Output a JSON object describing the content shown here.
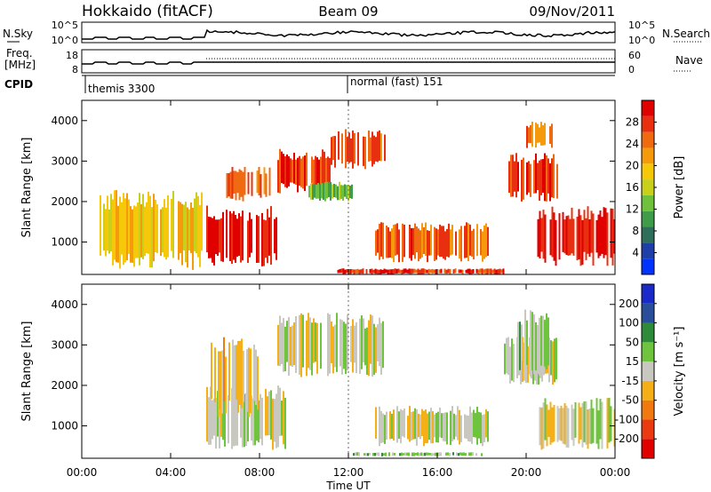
{
  "header": {
    "radar": "Hokkaido (fitACF)",
    "beam": "Beam 09",
    "date": "09/Nov/2011"
  },
  "noise_panel": {
    "left_label": "N.Sky",
    "right_label": "N.Search",
    "left_ticks": [
      "10^5",
      "10^0"
    ],
    "right_ticks": [
      "10^5",
      "10^0"
    ]
  },
  "freq_panel": {
    "left_label_1": "Freq.",
    "left_label_2": "[MHz]",
    "right_label": "Nave",
    "left_ticks": [
      "18",
      "8"
    ],
    "right_ticks": [
      "60",
      "0"
    ]
  },
  "cpid": {
    "label": "CPID",
    "segments": [
      "themis 3300",
      "normal (fast) 151"
    ]
  },
  "colors": {
    "power_scale": [
      "#0033ff",
      "#1e3fa8",
      "#2e6e5a",
      "#3f9c4a",
      "#6fc03a",
      "#c8d01c",
      "#f6c80a",
      "#f59a0a",
      "#ef6a10",
      "#e83010",
      "#e00000"
    ],
    "velocity_scale": [
      "#1a2ac8",
      "#2a4f9a",
      "#2f8a3a",
      "#6ec43c",
      "#c8c8c0",
      "#f5b018",
      "#f07a10",
      "#ea3a12",
      "#e00000"
    ]
  },
  "chart_data": [
    {
      "type": "heatmap",
      "title": "Power",
      "xlabel": "Time UT",
      "ylabel": "Slant Range [km]",
      "x_ticks": [
        "00:00",
        "04:00",
        "08:00",
        "12:00",
        "16:00",
        "20:00",
        "00:00"
      ],
      "y_ticks": [
        "1000",
        "2000",
        "3000",
        "4000"
      ],
      "xlim_hours": [
        0,
        24
      ],
      "ylim_km": [
        200,
        4500
      ],
      "colorbar": {
        "label": "Power [dB]",
        "ticks": [
          "4",
          "8",
          "12",
          "16",
          "20",
          "24",
          "28"
        ],
        "range": [
          0,
          30
        ]
      },
      "regions": [
        {
          "t0": 5.6,
          "t1": 8.8,
          "r0": 400,
          "r1": 1900,
          "level": 28
        },
        {
          "t0": 6.5,
          "t1": 8.5,
          "r0": 2000,
          "r1": 2900,
          "level": 24
        },
        {
          "t0": 8.8,
          "t1": 11.2,
          "r0": 2200,
          "r1": 3300,
          "level": 26
        },
        {
          "t0": 11.2,
          "t1": 13.6,
          "r0": 2800,
          "r1": 3800,
          "level": 24
        },
        {
          "t0": 10.2,
          "t1": 12.2,
          "r0": 2000,
          "r1": 2500,
          "level": 12
        },
        {
          "t0": 13.2,
          "t1": 18.3,
          "r0": 500,
          "r1": 1500,
          "level": 24
        },
        {
          "t0": 19.2,
          "t1": 21.4,
          "r0": 2000,
          "r1": 3200,
          "level": 26
        },
        {
          "t0": 20.5,
          "t1": 24.0,
          "r0": 400,
          "r1": 1900,
          "level": 28
        },
        {
          "t0": 11.5,
          "t1": 19.0,
          "r0": 200,
          "r1": 350,
          "level": 26
        },
        {
          "t0": 20.0,
          "t1": 21.2,
          "r0": 3300,
          "r1": 4000,
          "level": 22
        },
        {
          "t0": 0.8,
          "t1": 5.4,
          "r0": 300,
          "r1": 2300,
          "level": 18
        }
      ]
    },
    {
      "type": "heatmap",
      "title": "Velocity",
      "xlabel": "Time UT",
      "ylabel": "Slant Range [km]",
      "x_ticks": [
        "00:00",
        "04:00",
        "08:00",
        "12:00",
        "16:00",
        "20:00",
        "00:00"
      ],
      "y_ticks": [
        "1000",
        "2000",
        "3000",
        "4000"
      ],
      "xlim_hours": [
        0,
        24
      ],
      "ylim_km": [
        200,
        4500
      ],
      "colorbar": {
        "label": "Velocity [m s⁻¹]",
        "ticks": [
          "200",
          "100",
          "50",
          "15",
          "-15",
          "-50",
          "-100",
          "-200"
        ],
        "range": [
          -250,
          250
        ]
      },
      "regions": [
        {
          "t0": 5.6,
          "t1": 9.2,
          "r0": 400,
          "r1": 2000,
          "level": 0
        },
        {
          "t0": 8.8,
          "t1": 13.6,
          "r0": 2200,
          "r1": 3800,
          "level": 0
        },
        {
          "t0": 13.2,
          "t1": 18.3,
          "r0": 500,
          "r1": 1500,
          "level": 0
        },
        {
          "t0": 19.0,
          "t1": 21.4,
          "r0": 2000,
          "r1": 3200,
          "level": 0
        },
        {
          "t0": 20.5,
          "t1": 24.0,
          "r0": 400,
          "r1": 1700,
          "level": 0
        },
        {
          "t0": 19.6,
          "t1": 21.0,
          "r0": 2200,
          "r1": 3900,
          "level": 40
        },
        {
          "t0": 5.8,
          "t1": 8.0,
          "r0": 1200,
          "r1": 3200,
          "level": -40
        },
        {
          "t0": 12.2,
          "t1": 18.0,
          "r0": 250,
          "r1": 350,
          "level": 40
        }
      ]
    }
  ]
}
